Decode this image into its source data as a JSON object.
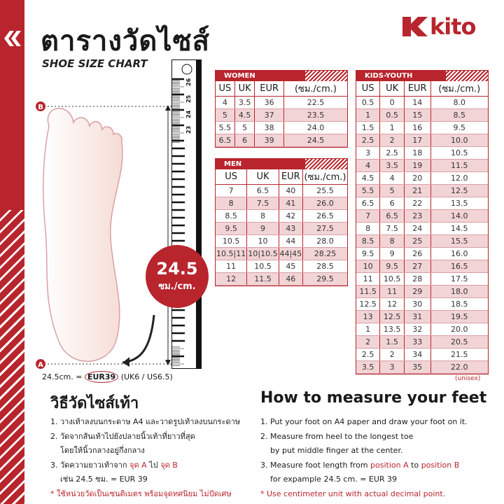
{
  "header": {
    "title_th": "ตารางวัดไซส์",
    "title_en": "SHOE SIZE CHART",
    "brand": "KITO"
  },
  "colors": {
    "accent": "#b8252d",
    "row_alt": "#f2d4d6"
  },
  "columns": [
    "US",
    "UK",
    "EUR",
    "(ซม./cm.)"
  ],
  "women": {
    "label": "WOMEN",
    "rows": [
      [
        "4",
        "3.5",
        "36",
        "22.5"
      ],
      [
        "5",
        "4.5",
        "37",
        "23.5"
      ],
      [
        "5.5",
        "5",
        "38",
        "24.0"
      ],
      [
        "6.5",
        "6",
        "39",
        "24.5"
      ]
    ]
  },
  "men": {
    "label": "MEN",
    "rows": [
      [
        "7",
        "6.5",
        "40",
        "25.5"
      ],
      [
        "8",
        "7.5",
        "41",
        "26.0"
      ],
      [
        "8.5",
        "8",
        "42",
        "26.5"
      ],
      [
        "9.5",
        "9",
        "43",
        "27.5"
      ],
      [
        "10.5",
        "10",
        "44",
        "28.0"
      ],
      [
        "10.5|11",
        "10|10.5",
        "44|45",
        "28.25"
      ],
      [
        "11",
        "10.5",
        "45",
        "28.5"
      ],
      [
        "12",
        "11.5",
        "46",
        "29.5"
      ]
    ]
  },
  "kids": {
    "label": "KIDS-YOUTH",
    "note": "(unisex)",
    "rows": [
      [
        "0.5",
        "0",
        "14",
        "8.0"
      ],
      [
        "1",
        "0.5",
        "15",
        "8.5"
      ],
      [
        "1.5",
        "1",
        "16",
        "9.5"
      ],
      [
        "2.5",
        "2",
        "17",
        "10.0"
      ],
      [
        "3",
        "2.5",
        "18",
        "10.5"
      ],
      [
        "4",
        "3.5",
        "19",
        "11.5"
      ],
      [
        "4.5",
        "4",
        "20",
        "12.0"
      ],
      [
        "5.5",
        "5",
        "21",
        "12.5"
      ],
      [
        "6.5",
        "6",
        "22",
        "13.5"
      ],
      [
        "7",
        "6.5",
        "23",
        "14.0"
      ],
      [
        "8",
        "7.5",
        "24",
        "14.5"
      ],
      [
        "8.5",
        "8",
        "25",
        "15.5"
      ],
      [
        "9.5",
        "9",
        "26",
        "16.0"
      ],
      [
        "10",
        "9.5",
        "27",
        "16.5"
      ],
      [
        "11",
        "10.5",
        "28",
        "17.5"
      ],
      [
        "11.5",
        "11",
        "29",
        "18.0"
      ],
      [
        "12.5",
        "12",
        "30",
        "18.5"
      ],
      [
        "13",
        "12.5",
        "31",
        "19.5"
      ],
      [
        "1",
        "13.5",
        "32",
        "20.0"
      ],
      [
        "2",
        "1.5",
        "33",
        "20.5"
      ],
      [
        "2.5",
        "2",
        "34",
        "21.5"
      ],
      [
        "3.5",
        "3",
        "35",
        "22.0"
      ]
    ]
  },
  "diagram": {
    "point_a": "A",
    "point_b": "B",
    "badge_value": "24.5",
    "badge_unit": "ซม./cm.",
    "ruler_labels": [
      "26",
      "25",
      "24",
      "23"
    ],
    "measure_prefix": "24.5cm. =",
    "measure_eur": "EUR39",
    "measure_suffix": "(UK6 / US6.5)"
  },
  "thai": {
    "title": "วิธีวัดไซส์เท้า",
    "step1": "1. วางเท้าลงบนกระดาษ A4 และวาดรูปเท้าลงบนกระดาษ",
    "step2a": "2. วัดจากส้นเท้าไปยังปลายนิ้วเท้าที่ยาวที่สุด",
    "step2b": "โดยให้นิ้วกลางอยู่กึ่งกลาง",
    "step3a": "3. วัดความยาวเท้าจาก",
    "step3_a": "จุด A",
    "step3_mid": "ไป",
    "step3_b": "จุด B",
    "step3b": "เช่น 24.5 ซม. = EUR 39",
    "note": "* ใช้หน่วยวัดเป็นเซนติเมตร พร้อมจุดทศนิยม ไม่ปัดเศษ"
  },
  "english": {
    "title": "How to measure your feet",
    "step1": "1. Put your foot on A4 paper and draw your foot on it.",
    "step2a": "2. Measure from heel to the longest toe",
    "step2b": "by put middle finger at the center.",
    "step3a": "3. Measure foot length from",
    "step3_a": "position A",
    "step3_mid": "to",
    "step3_b": "position B",
    "step3b": "for expample 24.5 cm. = EUR 39",
    "note": "* Use centimeter unit with actual decimal point."
  }
}
